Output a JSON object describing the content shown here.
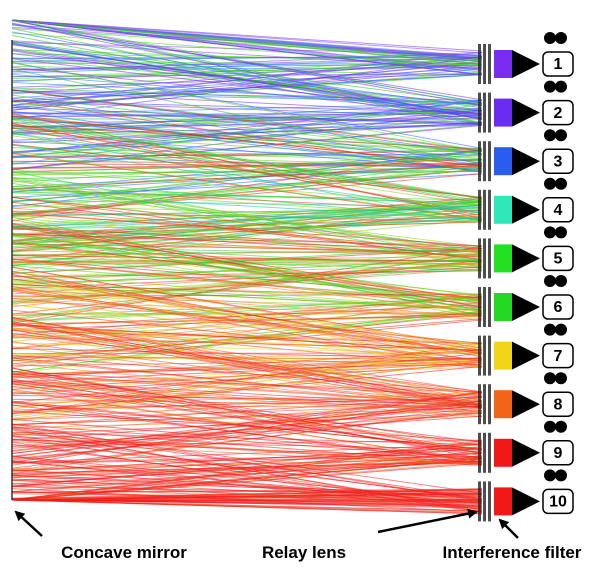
{
  "labels": {
    "mirror": "Concave mirror",
    "relay": "Relay lens",
    "filter": "Interference filter"
  },
  "channels": [
    {
      "label": "1",
      "color": "#7a2cf0"
    },
    {
      "label": "2",
      "color": "#6a2cf0"
    },
    {
      "label": "3",
      "color": "#2a5cf0"
    },
    {
      "label": "4",
      "color": "#2ee8b8"
    },
    {
      "label": "5",
      "color": "#22e022"
    },
    {
      "label": "6",
      "color": "#22d822"
    },
    {
      "label": "7",
      "color": "#f2d418"
    },
    {
      "label": "8",
      "color": "#f26418"
    },
    {
      "label": "9",
      "color": "#f21818"
    },
    {
      "label": "10",
      "color": "#f21818"
    }
  ]
}
